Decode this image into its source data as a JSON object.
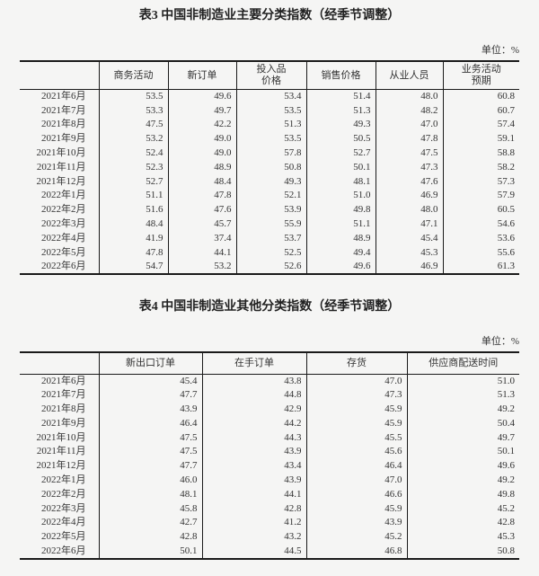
{
  "page": {
    "background": "#f5f5f4",
    "text_color": "#333333",
    "border_color": "#1a1a1a"
  },
  "tables": [
    {
      "title": "表3 中国非制造业主要分类指数（经季节调整）",
      "unit": "单位：%",
      "headers": [
        "",
        "商务活动",
        "新订单",
        "投入品\n价格",
        "销售价格",
        "从业人员",
        "业务活动\n预期"
      ],
      "rows": [
        {
          "label": "2021年6月",
          "values": [
            "53.5",
            "49.6",
            "53.4",
            "51.4",
            "48.0",
            "60.8"
          ]
        },
        {
          "label": "2021年7月",
          "values": [
            "53.3",
            "49.7",
            "53.5",
            "51.3",
            "48.2",
            "60.7"
          ]
        },
        {
          "label": "2021年8月",
          "values": [
            "47.5",
            "42.2",
            "51.3",
            "49.3",
            "47.0",
            "57.4"
          ]
        },
        {
          "label": "2021年9月",
          "values": [
            "53.2",
            "49.0",
            "53.5",
            "50.5",
            "47.8",
            "59.1"
          ]
        },
        {
          "label": "2021年10月",
          "values": [
            "52.4",
            "49.0",
            "57.8",
            "52.7",
            "47.5",
            "58.8"
          ]
        },
        {
          "label": "2021年11月",
          "values": [
            "52.3",
            "48.9",
            "50.8",
            "50.1",
            "47.3",
            "58.2"
          ]
        },
        {
          "label": "2021年12月",
          "values": [
            "52.7",
            "48.4",
            "49.3",
            "48.1",
            "47.6",
            "57.3"
          ]
        },
        {
          "label": "2022年1月",
          "values": [
            "51.1",
            "47.8",
            "52.1",
            "51.0",
            "46.9",
            "57.9"
          ]
        },
        {
          "label": "2022年2月",
          "values": [
            "51.6",
            "47.6",
            "53.9",
            "49.8",
            "48.0",
            "60.5"
          ]
        },
        {
          "label": "2022年3月",
          "values": [
            "48.4",
            "45.7",
            "55.9",
            "51.1",
            "47.1",
            "54.6"
          ]
        },
        {
          "label": "2022年4月",
          "values": [
            "41.9",
            "37.4",
            "53.7",
            "48.9",
            "45.4",
            "53.6"
          ]
        },
        {
          "label": "2022年5月",
          "values": [
            "47.8",
            "44.1",
            "52.5",
            "49.4",
            "45.3",
            "55.6"
          ]
        },
        {
          "label": "2022年6月",
          "values": [
            "54.7",
            "53.2",
            "52.6",
            "49.6",
            "46.9",
            "61.3"
          ]
        }
      ]
    },
    {
      "title": "表4 中国非制造业其他分类指数（经季节调整）",
      "unit": "单位：%",
      "headers": [
        "",
        "新出口订单",
        "在手订单",
        "存货",
        "供应商配送时间"
      ],
      "rows": [
        {
          "label": "2021年6月",
          "values": [
            "45.4",
            "43.8",
            "47.0",
            "51.0"
          ]
        },
        {
          "label": "2021年7月",
          "values": [
            "47.7",
            "44.8",
            "47.3",
            "51.3"
          ]
        },
        {
          "label": "2021年8月",
          "values": [
            "43.9",
            "42.9",
            "45.9",
            "49.2"
          ]
        },
        {
          "label": "2021年9月",
          "values": [
            "46.4",
            "44.2",
            "45.9",
            "50.4"
          ]
        },
        {
          "label": "2021年10月",
          "values": [
            "47.5",
            "44.3",
            "45.5",
            "49.7"
          ]
        },
        {
          "label": "2021年11月",
          "values": [
            "47.5",
            "43.9",
            "45.6",
            "50.1"
          ]
        },
        {
          "label": "2021年12月",
          "values": [
            "47.7",
            "43.4",
            "46.4",
            "49.6"
          ]
        },
        {
          "label": "2022年1月",
          "values": [
            "46.0",
            "43.9",
            "47.0",
            "49.2"
          ]
        },
        {
          "label": "2022年2月",
          "values": [
            "48.1",
            "44.1",
            "46.6",
            "49.8"
          ]
        },
        {
          "label": "2022年3月",
          "values": [
            "45.8",
            "42.8",
            "45.9",
            "45.2"
          ]
        },
        {
          "label": "2022年4月",
          "values": [
            "42.7",
            "41.2",
            "43.9",
            "42.8"
          ]
        },
        {
          "label": "2022年5月",
          "values": [
            "42.8",
            "43.2",
            "45.2",
            "45.3"
          ]
        },
        {
          "label": "2022年6月",
          "values": [
            "50.1",
            "44.5",
            "46.8",
            "50.8"
          ]
        }
      ]
    }
  ]
}
